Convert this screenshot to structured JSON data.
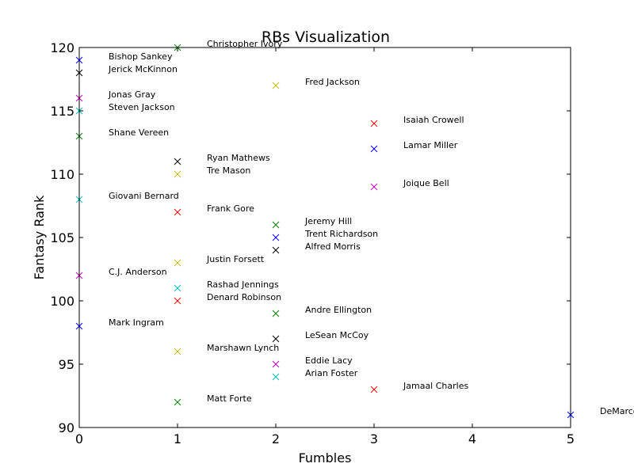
{
  "chart_data": {
    "type": "scatter",
    "title": "RBs Visualization",
    "xlabel": "Fumbles",
    "ylabel": "Fantasy Rank",
    "xlim": [
      0,
      5
    ],
    "ylim": [
      90,
      120
    ],
    "xticks": [
      "0",
      "1",
      "2",
      "3",
      "4",
      "5"
    ],
    "yticks": [
      "90",
      "95",
      "100",
      "105",
      "110",
      "115",
      "120"
    ],
    "grid": false,
    "marker": "x",
    "points": [
      {
        "label": "Christopher Ivory",
        "x": 1,
        "y": 120,
        "color": "#008000"
      },
      {
        "label": "Bishop Sankey",
        "x": 0,
        "y": 119,
        "color": "#0000ff"
      },
      {
        "label": "Jerick McKinnon",
        "x": 0,
        "y": 118,
        "color": "#000000"
      },
      {
        "label": "Fred Jackson",
        "x": 2,
        "y": 117,
        "color": "#bfbf00"
      },
      {
        "label": "Jonas Gray",
        "x": 0,
        "y": 116,
        "color": "#bf00bf"
      },
      {
        "label": "Steven Jackson",
        "x": 0,
        "y": 115,
        "color": "#00bfbf"
      },
      {
        "label": "Isaiah Crowell",
        "x": 3,
        "y": 114,
        "color": "#ff0000"
      },
      {
        "label": "Shane Vereen",
        "x": 0,
        "y": 113,
        "color": "#008000"
      },
      {
        "label": "Lamar Miller",
        "x": 3,
        "y": 112,
        "color": "#0000ff"
      },
      {
        "label": "Ryan Mathews",
        "x": 1,
        "y": 111,
        "color": "#000000"
      },
      {
        "label": "Tre Mason",
        "x": 1,
        "y": 110,
        "color": "#bfbf00"
      },
      {
        "label": "Joique Bell",
        "x": 3,
        "y": 109,
        "color": "#bf00bf"
      },
      {
        "label": "Giovani Bernard",
        "x": 0,
        "y": 108,
        "color": "#00bfbf"
      },
      {
        "label": "Frank Gore",
        "x": 1,
        "y": 107,
        "color": "#ff0000"
      },
      {
        "label": "Jeremy Hill",
        "x": 2,
        "y": 106,
        "color": "#008000"
      },
      {
        "label": "Trent Richardson",
        "x": 2,
        "y": 105,
        "color": "#0000ff"
      },
      {
        "label": "Alfred Morris",
        "x": 2,
        "y": 104,
        "color": "#000000"
      },
      {
        "label": "Justin Forsett",
        "x": 1,
        "y": 103,
        "color": "#bfbf00"
      },
      {
        "label": "C.J. Anderson",
        "x": 0,
        "y": 102,
        "color": "#bf00bf"
      },
      {
        "label": "Rashad Jennings",
        "x": 1,
        "y": 101,
        "color": "#00bfbf"
      },
      {
        "label": "Denard Robinson",
        "x": 1,
        "y": 100,
        "color": "#ff0000"
      },
      {
        "label": "Andre Ellington",
        "x": 2,
        "y": 99,
        "color": "#008000"
      },
      {
        "label": "Mark Ingram",
        "x": 0,
        "y": 98,
        "color": "#0000ff"
      },
      {
        "label": "LeSean McCoy",
        "x": 2,
        "y": 97,
        "color": "#000000"
      },
      {
        "label": "Marshawn Lynch",
        "x": 1,
        "y": 96,
        "color": "#bfbf00"
      },
      {
        "label": "Eddie Lacy",
        "x": 2,
        "y": 95,
        "color": "#bf00bf"
      },
      {
        "label": "Arian Foster",
        "x": 2,
        "y": 94,
        "color": "#00bfbf"
      },
      {
        "label": "Jamaal Charles",
        "x": 3,
        "y": 93,
        "color": "#ff0000"
      },
      {
        "label": "Matt Forte",
        "x": 1,
        "y": 92,
        "color": "#008000"
      },
      {
        "label": "DeMarco Murray",
        "x": 5,
        "y": 91,
        "color": "#0000ff"
      }
    ]
  }
}
